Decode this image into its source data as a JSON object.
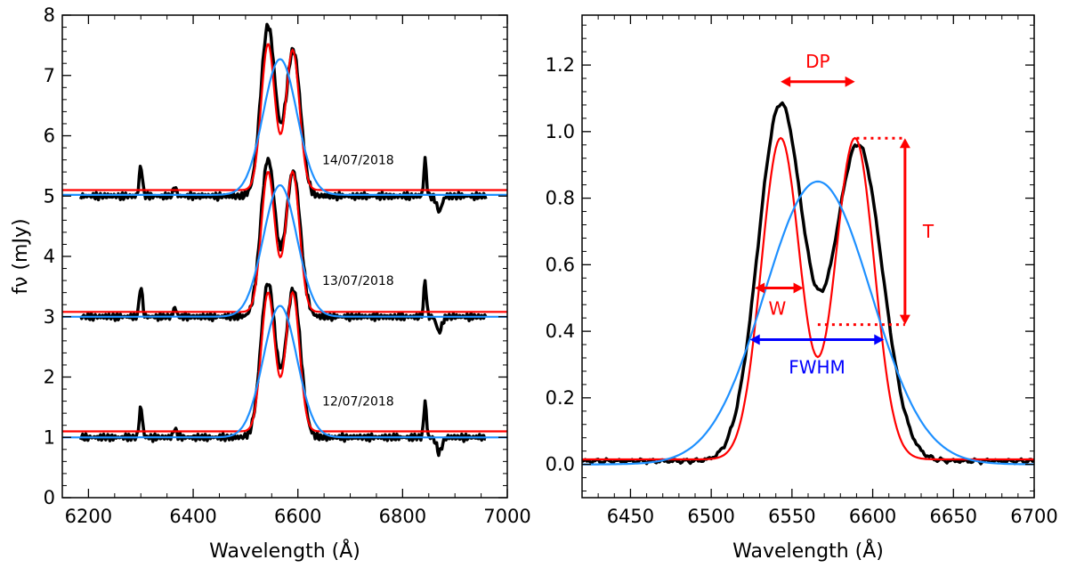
{
  "chart_data": [
    {
      "type": "line",
      "xlabel": "Wavelength (Å)",
      "ylabel": "fν (mJy)",
      "xlim": [
        6150,
        7000
      ],
      "ylim": [
        0,
        8
      ],
      "xticks": [
        6200,
        6400,
        6600,
        6800,
        7000
      ],
      "yticks": [
        0,
        1,
        2,
        3,
        4,
        5,
        6,
        7,
        8
      ],
      "grid": false,
      "legend": "none",
      "annotations": [
        {
          "text": "14/07/2018",
          "x": 6715,
          "y": 5.6
        },
        {
          "text": "13/07/2018",
          "x": 6715,
          "y": 3.6
        },
        {
          "text": "12/07/2018",
          "x": 6715,
          "y": 1.6
        }
      ],
      "epochs": [
        {
          "offset": 5,
          "observed": {
            "color": "#000000",
            "base": 5.0,
            "peaks": [
              {
                "center": 6543,
                "height": 2.82,
                "width": 14
              },
              {
                "center": 6591,
                "height": 2.42,
                "width": 14
              }
            ]
          },
          "double_gauss": {
            "color": "#ff0000",
            "base": 5.1,
            "peaks": [
              {
                "center": 6543,
                "height": 2.42,
                "width": 13
              },
              {
                "center": 6590,
                "height": 2.32,
                "width": 13
              }
            ]
          },
          "single_gauss": {
            "color": "#1e90ff",
            "base": 5.02,
            "center": 6566,
            "height": 2.25,
            "width": 32
          }
        },
        {
          "offset": 3,
          "observed": {
            "color": "#000000",
            "base": 3.0,
            "peaks": [
              {
                "center": 6543,
                "height": 2.6,
                "width": 14
              },
              {
                "center": 6591,
                "height": 2.4,
                "width": 14
              }
            ]
          },
          "double_gauss": {
            "color": "#ff0000",
            "base": 3.08,
            "peaks": [
              {
                "center": 6543,
                "height": 2.32,
                "width": 13
              },
              {
                "center": 6590,
                "height": 2.32,
                "width": 13
              }
            ]
          },
          "single_gauss": {
            "color": "#1e90ff",
            "base": 3.0,
            "center": 6566,
            "height": 2.18,
            "width": 32
          }
        },
        {
          "offset": 1,
          "observed": {
            "color": "#000000",
            "base": 1.0,
            "peaks": [
              {
                "center": 6543,
                "height": 2.55,
                "width": 14
              },
              {
                "center": 6591,
                "height": 2.45,
                "width": 14
              }
            ]
          },
          "double_gauss": {
            "color": "#ff0000",
            "base": 1.1,
            "peaks": [
              {
                "center": 6543,
                "height": 2.3,
                "width": 13
              },
              {
                "center": 6590,
                "height": 2.3,
                "width": 13
              }
            ]
          },
          "single_gauss": {
            "color": "#1e90ff",
            "base": 1.0,
            "center": 6566,
            "height": 2.18,
            "width": 32
          }
        }
      ]
    },
    {
      "type": "line",
      "xlabel": "Wavelength (Å)",
      "ylabel": "",
      "xlim": [
        6420,
        6700
      ],
      "ylim": [
        -0.1,
        1.35
      ],
      "xticks": [
        6450,
        6500,
        6550,
        6600,
        6650,
        6700
      ],
      "yticks": [
        0.0,
        0.2,
        0.4,
        0.6,
        0.8,
        1.0,
        1.2
      ],
      "grid": false,
      "legend": "none",
      "series": [
        {
          "color": "#000000",
          "base": 0.01,
          "peaks": [
            {
              "center": 6543,
              "height": 1.07,
              "width": 14
            },
            {
              "center": 6591,
              "height": 0.95,
              "width": 15
            }
          ]
        },
        {
          "color": "#ff0000",
          "base": 0.015,
          "peaks": [
            {
              "center": 6543,
              "height": 0.965,
              "width": 12
            },
            {
              "center": 6589,
              "height": 0.965,
              "width": 12
            }
          ]
        },
        {
          "color": "#1e90ff",
          "base": 0.0,
          "center": 6566,
          "height": 0.85,
          "width": 33
        }
      ],
      "annotations": {
        "dp": {
          "label": "DP",
          "color": "#ff0000",
          "x1": 6543,
          "x2": 6589,
          "y": 1.15
        },
        "t": {
          "label": "T",
          "color": "#ff0000",
          "x": 6620,
          "y1": 0.42,
          "y2": 0.98
        },
        "t_dotted": {
          "color": "#ff0000",
          "top": {
            "x1": 6590,
            "x2": 6620,
            "y": 0.98
          },
          "bottom": {
            "x1": 6566,
            "x2": 6620,
            "y": 0.42
          }
        },
        "w": {
          "label": "W",
          "color": "#ff0000",
          "x1": 6527,
          "x2": 6557,
          "y": 0.53
        },
        "fwhm": {
          "label": "FWHM",
          "color": "#0000ff",
          "x1": 6524,
          "x2": 6607,
          "y": 0.375
        }
      }
    }
  ],
  "colors": {
    "observed": "#000000",
    "double_gauss": "#ff0000",
    "single_gauss": "#1e90ff",
    "fwhm": "#0000ff"
  }
}
